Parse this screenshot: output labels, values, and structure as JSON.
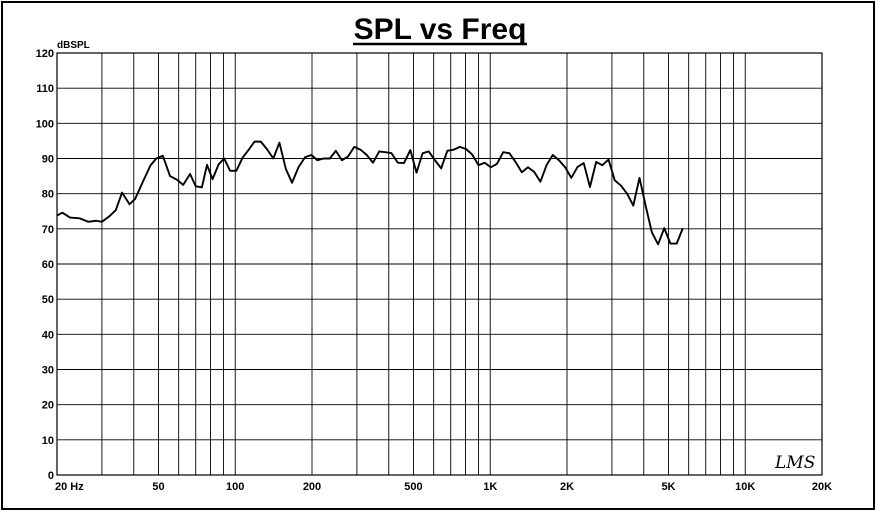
{
  "chart_data": {
    "type": "line",
    "title": "SPL vs Freq",
    "ylabel": "dBSPL",
    "xlabel": "",
    "x_scale": "log",
    "xlim": [
      20,
      20000
    ],
    "ylim": [
      0,
      120
    ],
    "grid": true,
    "y_ticks": [
      0,
      10,
      20,
      30,
      40,
      50,
      60,
      70,
      80,
      90,
      100,
      110,
      120
    ],
    "x_tick_labels": [
      {
        "value": 20,
        "label": "20  Hz"
      },
      {
        "value": 50,
        "label": "50"
      },
      {
        "value": 100,
        "label": "100"
      },
      {
        "value": 200,
        "label": "200"
      },
      {
        "value": 500,
        "label": "500"
      },
      {
        "value": 1000,
        "label": "1K"
      },
      {
        "value": 2000,
        "label": "2K"
      },
      {
        "value": 5000,
        "label": "5K"
      },
      {
        "value": 10000,
        "label": "10K"
      },
      {
        "value": 20000,
        "label": "20K"
      }
    ],
    "series": [
      {
        "color": "#000000",
        "points": [
          [
            20,
            73.8
          ],
          [
            21,
            74.6
          ],
          [
            22.5,
            73.2
          ],
          [
            24.5,
            73.0
          ],
          [
            26.5,
            72.0
          ],
          [
            28.5,
            72.3
          ],
          [
            30,
            72.0
          ],
          [
            32,
            73.5
          ],
          [
            34,
            75.3
          ],
          [
            36,
            80.3
          ],
          [
            38.5,
            77.0
          ],
          [
            40.5,
            78.5
          ],
          [
            43.5,
            83.5
          ],
          [
            46.5,
            88.0
          ],
          [
            49,
            90.0
          ],
          [
            52,
            90.8
          ],
          [
            55.5,
            85.0
          ],
          [
            59,
            84.0
          ],
          [
            62.5,
            82.5
          ],
          [
            66.5,
            85.6
          ],
          [
            70,
            82.1
          ],
          [
            74,
            81.8
          ],
          [
            77.5,
            88.2
          ],
          [
            81.5,
            84.1
          ],
          [
            86,
            88.3
          ],
          [
            90.5,
            90.0
          ],
          [
            95.5,
            86.5
          ],
          [
            101,
            86.5
          ],
          [
            107,
            90.3
          ],
          [
            113,
            92.5
          ],
          [
            119,
            94.8
          ],
          [
            126,
            94.8
          ],
          [
            133,
            92.7
          ],
          [
            141,
            90.0
          ],
          [
            149,
            94.5
          ],
          [
            158,
            87.0
          ],
          [
            167,
            83.1
          ],
          [
            177,
            87.5
          ],
          [
            188,
            90.4
          ],
          [
            199,
            91.0
          ],
          [
            210,
            89.5
          ],
          [
            222,
            90.0
          ],
          [
            235,
            90.0
          ],
          [
            248,
            92.2
          ],
          [
            262,
            89.5
          ],
          [
            277,
            90.6
          ],
          [
            293,
            93.3
          ],
          [
            310,
            92.5
          ],
          [
            328,
            91.0
          ],
          [
            347,
            88.8
          ],
          [
            367,
            92.0
          ],
          [
            388,
            91.8
          ],
          [
            410,
            91.5
          ],
          [
            434,
            88.8
          ],
          [
            459,
            88.7
          ],
          [
            486,
            92.4
          ],
          [
            514,
            86.0
          ],
          [
            543,
            91.5
          ],
          [
            574,
            92.0
          ],
          [
            607,
            89.5
          ],
          [
            642,
            87.2
          ],
          [
            679,
            92.2
          ],
          [
            718,
            92.5
          ],
          [
            760,
            93.3
          ],
          [
            804,
            92.7
          ],
          [
            850,
            91.1
          ],
          [
            899,
            88.1
          ],
          [
            951,
            88.8
          ],
          [
            1005,
            87.5
          ],
          [
            1063,
            88.5
          ],
          [
            1124,
            91.8
          ],
          [
            1189,
            91.5
          ],
          [
            1257,
            89.0
          ],
          [
            1330,
            86.1
          ],
          [
            1406,
            87.5
          ],
          [
            1487,
            86.2
          ],
          [
            1573,
            83.4
          ],
          [
            1663,
            88.1
          ],
          [
            1759,
            91.0
          ],
          [
            1860,
            89.5
          ],
          [
            1967,
            87.5
          ],
          [
            2080,
            84.5
          ],
          [
            2200,
            87.6
          ],
          [
            2326,
            88.7
          ],
          [
            2460,
            81.9
          ],
          [
            2602,
            89.0
          ],
          [
            2751,
            88.1
          ],
          [
            2910,
            89.7
          ],
          [
            3077,
            83.8
          ],
          [
            3254,
            82.3
          ],
          [
            3441,
            80.0
          ],
          [
            3639,
            76.6
          ],
          [
            3849,
            84.5
          ],
          [
            4070,
            76.5
          ],
          [
            4304,
            69.0
          ],
          [
            4552,
            65.6
          ],
          [
            4814,
            70.2
          ],
          [
            5091,
            65.8
          ],
          [
            5384,
            65.8
          ],
          [
            5693,
            70.2
          ]
        ]
      }
    ]
  }
}
